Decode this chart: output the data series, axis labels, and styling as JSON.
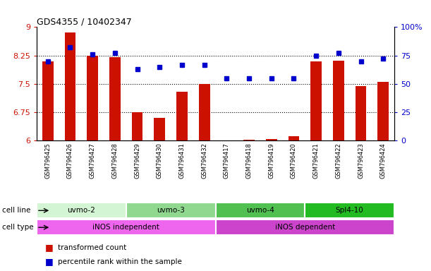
{
  "title": "GDS4355 / 10402347",
  "samples": [
    "GSM796425",
    "GSM796426",
    "GSM796427",
    "GSM796428",
    "GSM796429",
    "GSM796430",
    "GSM796431",
    "GSM796432",
    "GSM796417",
    "GSM796418",
    "GSM796419",
    "GSM796420",
    "GSM796421",
    "GSM796422",
    "GSM796423",
    "GSM796424"
  ],
  "transformed_count": [
    8.1,
    8.85,
    8.25,
    8.2,
    6.75,
    6.6,
    7.3,
    7.5,
    6.01,
    6.03,
    6.05,
    6.12,
    8.1,
    8.12,
    7.45,
    7.55
  ],
  "percentile_rank": [
    70,
    82,
    76,
    77,
    63,
    65,
    67,
    67,
    55,
    55,
    55,
    55,
    75,
    77,
    70,
    72
  ],
  "ylim_left": [
    6,
    9
  ],
  "ylim_right": [
    0,
    100
  ],
  "yticks_left": [
    6,
    6.75,
    7.5,
    8.25,
    9
  ],
  "yticks_right": [
    0,
    25,
    50,
    75,
    100
  ],
  "ytick_labels_left": [
    "6",
    "6.75",
    "7.5",
    "8.25",
    "9"
  ],
  "ytick_labels_right": [
    "0",
    "25",
    "50",
    "75",
    "100%"
  ],
  "hgrid_values": [
    6.75,
    7.5,
    8.25
  ],
  "cell_lines": [
    {
      "label": "uvmo-2",
      "start": 0,
      "end": 4,
      "color": "#d4f5d4"
    },
    {
      "label": "uvmo-3",
      "start": 4,
      "end": 8,
      "color": "#90d890"
    },
    {
      "label": "uvmo-4",
      "start": 8,
      "end": 12,
      "color": "#50c050"
    },
    {
      "label": "Spl4-10",
      "start": 12,
      "end": 16,
      "color": "#22bb22"
    }
  ],
  "cell_types": [
    {
      "label": "iNOS independent",
      "start": 0,
      "end": 8,
      "color": "#ee66ee"
    },
    {
      "label": "iNOS dependent",
      "start": 8,
      "end": 16,
      "color": "#cc44cc"
    }
  ],
  "bar_color": "#cc1100",
  "dot_color": "#0000cc",
  "bar_bottom": 6.0,
  "left_color": "#cc1100",
  "right_color": "#0000cc"
}
